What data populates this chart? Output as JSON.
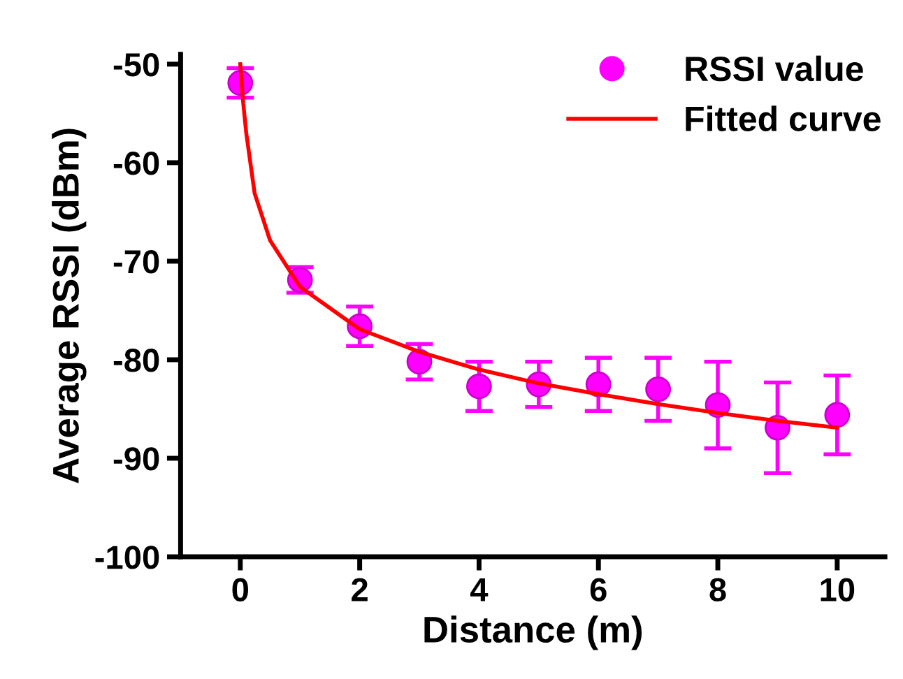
{
  "chart_data": {
    "type": "scatter",
    "xlabel": "Distance (m)",
    "ylabel": "Average RSSI (dBm)",
    "xlim": [
      -1,
      10.8
    ],
    "ylim": [
      -100,
      -49
    ],
    "xticks": [
      0,
      2,
      4,
      6,
      8,
      10
    ],
    "yticks": [
      -50,
      -60,
      -70,
      -80,
      -90,
      -100
    ],
    "legend": "top right",
    "grid": false,
    "series": [
      {
        "name": "RSSI value",
        "color": "#ff00ff",
        "marker": "circle",
        "x": [
          0,
          1,
          2,
          3,
          4,
          5,
          6,
          7,
          8,
          9,
          10
        ],
        "values": [
          -51.9,
          -71.9,
          -76.6,
          -80.2,
          -82.7,
          -82.5,
          -82.5,
          -83.0,
          -84.6,
          -86.9,
          -85.6
        ],
        "errors": [
          1.5,
          1.3,
          2.0,
          1.8,
          2.5,
          2.3,
          2.7,
          3.2,
          4.4,
          4.6,
          4.0
        ]
      },
      {
        "name": "Fitted curve",
        "type": "line",
        "color": "#ff0000",
        "line_style": "solid",
        "x": [
          0,
          0.05,
          0.1,
          0.24,
          0.5,
          1,
          2,
          3,
          4,
          5,
          6,
          7,
          8,
          9,
          10
        ],
        "values": [
          -50.0,
          -54.0,
          -57.0,
          -63.1,
          -67.9,
          -72.6,
          -76.9,
          -79.2,
          -81.0,
          -82.4,
          -83.5,
          -84.5,
          -85.4,
          -86.2,
          -86.9
        ]
      }
    ]
  }
}
